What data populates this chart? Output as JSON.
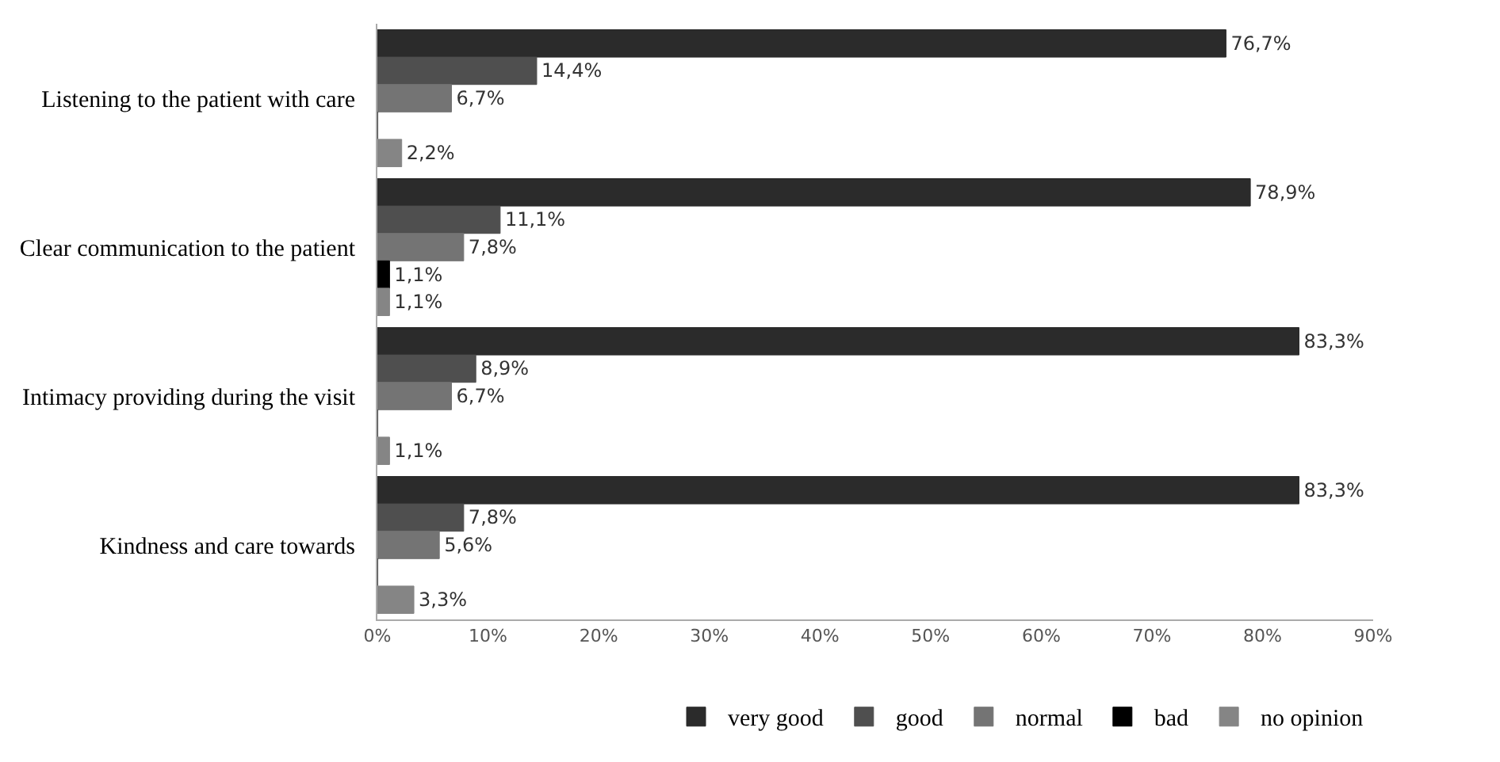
{
  "chart_data": {
    "type": "bar",
    "orientation": "horizontal",
    "categories": [
      "Listening to the patient with care",
      "Clear communication to the patient",
      "Intimacy providing during the visit",
      "Kindness and care towards"
    ],
    "series": [
      {
        "name": "very good",
        "color": "#2b2b2b",
        "values": [
          76.7,
          78.9,
          83.3,
          83.3
        ],
        "value_labels": [
          "76,7%",
          "78,9%",
          "83,3%",
          "83,3%"
        ]
      },
      {
        "name": "good",
        "color": "#4f4f4f",
        "values": [
          14.4,
          11.1,
          8.9,
          7.8
        ],
        "value_labels": [
          "14,4%",
          "11,1%",
          "8,9%",
          "7,8%"
        ]
      },
      {
        "name": "normal",
        "color": "#747474",
        "values": [
          6.7,
          7.8,
          6.7,
          5.6
        ],
        "value_labels": [
          "6,7%",
          "7,8%",
          "6,7%",
          "5,6%"
        ]
      },
      {
        "name": "bad",
        "color": "#000000",
        "values": [
          0,
          1.1,
          0,
          0
        ],
        "value_labels": [
          null,
          "1,1%",
          null,
          null
        ]
      },
      {
        "name": "no opinion",
        "color": "#858585",
        "values": [
          2.2,
          1.1,
          1.1,
          3.3
        ],
        "value_labels": [
          "2,2%",
          "1,1%",
          "1,1%",
          "3,3%"
        ]
      }
    ],
    "xlim": [
      0,
      90
    ],
    "xticks": [
      {
        "value": 0,
        "label": "0%"
      },
      {
        "value": 10,
        "label": "10%"
      },
      {
        "value": 20,
        "label": "20%"
      },
      {
        "value": 30,
        "label": "30%"
      },
      {
        "value": 40,
        "label": "40%"
      },
      {
        "value": 50,
        "label": "50%"
      },
      {
        "value": 60,
        "label": "60%"
      },
      {
        "value": 70,
        "label": "70%"
      },
      {
        "value": 80,
        "label": "80%"
      },
      {
        "value": 90,
        "label": "90%"
      }
    ],
    "legend": "bottom"
  }
}
